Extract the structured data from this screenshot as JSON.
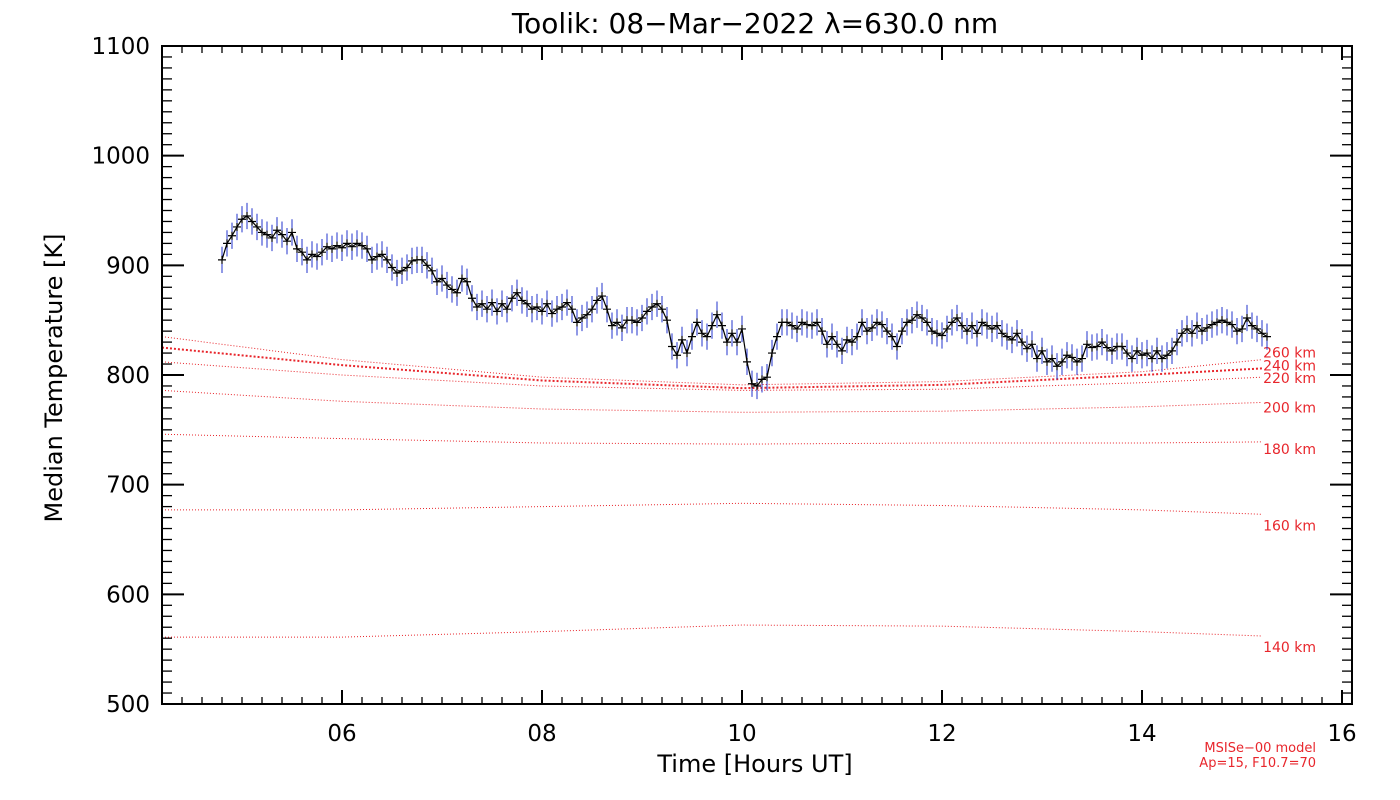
{
  "chart_data": {
    "type": "line",
    "title": "Toolik: 08−Mar−2022 λ=630.0 nm",
    "xlabel": "Time [Hours UT]",
    "ylabel": "Median Temperature [K]",
    "xlim": [
      4.2,
      16.1
    ],
    "ylim": [
      500,
      1100
    ],
    "x_ticks": [
      6,
      8,
      10,
      12,
      14,
      16
    ],
    "x_tick_labels": [
      "06",
      "08",
      "10",
      "12",
      "14",
      "16"
    ],
    "y_ticks": [
      500,
      600,
      700,
      800,
      900,
      1000,
      1100
    ],
    "y_tick_labels": [
      "500",
      "600",
      "700",
      "800",
      "900",
      "1000",
      "1100"
    ],
    "colors": {
      "measurement": "#000000",
      "error_bar": "#2233cc",
      "model": "#e8262c"
    },
    "series": [
      {
        "style": "line-with-cross-markers-and-blue-error-bars",
        "points": [
          [
            4.8,
            905
          ],
          [
            4.85,
            920
          ],
          [
            4.9,
            927
          ],
          [
            4.95,
            935
          ],
          [
            5.0,
            942
          ],
          [
            5.05,
            945
          ],
          [
            5.1,
            940
          ],
          [
            5.15,
            935
          ],
          [
            5.2,
            930
          ],
          [
            5.25,
            928
          ],
          [
            5.3,
            925
          ],
          [
            5.35,
            932
          ],
          [
            5.4,
            928
          ],
          [
            5.45,
            922
          ],
          [
            5.5,
            930
          ],
          [
            5.55,
            915
          ],
          [
            5.6,
            912
          ],
          [
            5.65,
            905
          ],
          [
            5.7,
            910
          ],
          [
            5.75,
            908
          ],
          [
            5.8,
            912
          ],
          [
            5.85,
            917
          ],
          [
            5.9,
            915
          ],
          [
            5.95,
            918
          ],
          [
            6.0,
            916
          ],
          [
            6.05,
            920
          ],
          [
            6.1,
            917
          ],
          [
            6.15,
            920
          ],
          [
            6.2,
            918
          ],
          [
            6.25,
            915
          ],
          [
            6.3,
            905
          ],
          [
            6.35,
            908
          ],
          [
            6.4,
            910
          ],
          [
            6.45,
            905
          ],
          [
            6.5,
            898
          ],
          [
            6.55,
            893
          ],
          [
            6.6,
            895
          ],
          [
            6.65,
            898
          ],
          [
            6.7,
            904
          ],
          [
            6.75,
            905
          ],
          [
            6.8,
            905
          ],
          [
            6.85,
            900
          ],
          [
            6.9,
            895
          ],
          [
            6.95,
            885
          ],
          [
            7.0,
            888
          ],
          [
            7.05,
            882
          ],
          [
            7.1,
            878
          ],
          [
            7.15,
            875
          ],
          [
            7.2,
            888
          ],
          [
            7.25,
            885
          ],
          [
            7.3,
            870
          ],
          [
            7.35,
            862
          ],
          [
            7.4,
            865
          ],
          [
            7.45,
            860
          ],
          [
            7.5,
            866
          ],
          [
            7.55,
            858
          ],
          [
            7.6,
            865
          ],
          [
            7.65,
            860
          ],
          [
            7.7,
            870
          ],
          [
            7.75,
            875
          ],
          [
            7.8,
            868
          ],
          [
            7.85,
            865
          ],
          [
            7.9,
            860
          ],
          [
            7.95,
            862
          ],
          [
            8.0,
            858
          ],
          [
            8.05,
            865
          ],
          [
            8.1,
            856
          ],
          [
            8.15,
            860
          ],
          [
            8.2,
            862
          ],
          [
            8.25,
            866
          ],
          [
            8.3,
            860
          ],
          [
            8.35,
            848
          ],
          [
            8.4,
            852
          ],
          [
            8.45,
            855
          ],
          [
            8.5,
            860
          ],
          [
            8.55,
            868
          ],
          [
            8.6,
            872
          ],
          [
            8.65,
            860
          ],
          [
            8.7,
            845
          ],
          [
            8.75,
            848
          ],
          [
            8.8,
            843
          ],
          [
            8.85,
            850
          ],
          [
            8.9,
            850
          ],
          [
            8.95,
            848
          ],
          [
            9.0,
            852
          ],
          [
            9.05,
            858
          ],
          [
            9.1,
            862
          ],
          [
            9.15,
            865
          ],
          [
            9.2,
            860
          ],
          [
            9.25,
            850
          ],
          [
            9.3,
            826
          ],
          [
            9.35,
            818
          ],
          [
            9.4,
            832
          ],
          [
            9.45,
            820
          ],
          [
            9.5,
            835
          ],
          [
            9.55,
            848
          ],
          [
            9.6,
            838
          ],
          [
            9.65,
            835
          ],
          [
            9.7,
            845
          ],
          [
            9.75,
            855
          ],
          [
            9.8,
            845
          ],
          [
            9.85,
            830
          ],
          [
            9.9,
            838
          ],
          [
            9.95,
            830
          ],
          [
            10.0,
            842
          ],
          [
            10.05,
            812
          ],
          [
            10.1,
            792
          ],
          [
            10.15,
            790
          ],
          [
            10.2,
            796
          ],
          [
            10.25,
            798
          ],
          [
            10.3,
            820
          ],
          [
            10.35,
            835
          ],
          [
            10.4,
            848
          ],
          [
            10.45,
            848
          ],
          [
            10.5,
            845
          ],
          [
            10.55,
            842
          ],
          [
            10.6,
            848
          ],
          [
            10.65,
            846
          ],
          [
            10.7,
            845
          ],
          [
            10.75,
            848
          ],
          [
            10.8,
            840
          ],
          [
            10.85,
            828
          ],
          [
            10.9,
            835
          ],
          [
            10.95,
            828
          ],
          [
            11.0,
            822
          ],
          [
            11.05,
            832
          ],
          [
            11.1,
            830
          ],
          [
            11.15,
            835
          ],
          [
            11.2,
            848
          ],
          [
            11.25,
            840
          ],
          [
            11.3,
            843
          ],
          [
            11.35,
            848
          ],
          [
            11.4,
            846
          ],
          [
            11.45,
            840
          ],
          [
            11.5,
            835
          ],
          [
            11.55,
            826
          ],
          [
            11.6,
            840
          ],
          [
            11.65,
            848
          ],
          [
            11.7,
            850
          ],
          [
            11.75,
            855
          ],
          [
            11.8,
            852
          ],
          [
            11.85,
            848
          ],
          [
            11.9,
            840
          ],
          [
            11.95,
            838
          ],
          [
            12.0,
            836
          ],
          [
            12.05,
            842
          ],
          [
            12.1,
            848
          ],
          [
            12.15,
            852
          ],
          [
            12.2,
            845
          ],
          [
            12.25,
            840
          ],
          [
            12.3,
            845
          ],
          [
            12.35,
            838
          ],
          [
            12.4,
            848
          ],
          [
            12.45,
            845
          ],
          [
            12.5,
            842
          ],
          [
            12.55,
            845
          ],
          [
            12.6,
            838
          ],
          [
            12.65,
            835
          ],
          [
            12.7,
            832
          ],
          [
            12.75,
            838
          ],
          [
            12.8,
            830
          ],
          [
            12.85,
            824
          ],
          [
            12.9,
            828
          ],
          [
            12.95,
            815
          ],
          [
            13.0,
            822
          ],
          [
            13.05,
            812
          ],
          [
            13.1,
            815
          ],
          [
            13.15,
            808
          ],
          [
            13.2,
            812
          ],
          [
            13.25,
            818
          ],
          [
            13.3,
            816
          ],
          [
            13.35,
            812
          ],
          [
            13.4,
            815
          ],
          [
            13.45,
            828
          ],
          [
            13.5,
            825
          ],
          [
            13.55,
            826
          ],
          [
            13.6,
            830
          ],
          [
            13.65,
            825
          ],
          [
            13.7,
            822
          ],
          [
            13.75,
            826
          ],
          [
            13.8,
            826
          ],
          [
            13.85,
            820
          ],
          [
            13.9,
            815
          ],
          [
            13.95,
            822
          ],
          [
            14.0,
            818
          ],
          [
            14.05,
            820
          ],
          [
            14.1,
            815
          ],
          [
            14.15,
            822
          ],
          [
            14.2,
            815
          ],
          [
            14.25,
            818
          ],
          [
            14.3,
            822
          ],
          [
            14.35,
            830
          ],
          [
            14.4,
            838
          ],
          [
            14.45,
            842
          ],
          [
            14.5,
            838
          ],
          [
            14.55,
            845
          ],
          [
            14.6,
            840
          ],
          [
            14.65,
            843
          ],
          [
            14.7,
            846
          ],
          [
            14.75,
            848
          ],
          [
            14.8,
            850
          ],
          [
            14.85,
            848
          ],
          [
            14.9,
            846
          ],
          [
            14.95,
            840
          ],
          [
            15.0,
            842
          ],
          [
            15.05,
            852
          ],
          [
            15.1,
            845
          ],
          [
            15.15,
            842
          ],
          [
            15.2,
            838
          ],
          [
            15.25,
            835
          ]
        ],
        "error_bar_half_width": 12
      }
    ],
    "model_curves": [
      {
        "label": "260 km",
        "points": [
          [
            4.2,
            835
          ],
          [
            6,
            814
          ],
          [
            8,
            798
          ],
          [
            10,
            791
          ],
          [
            12,
            794
          ],
          [
            14,
            803
          ],
          [
            15.2,
            814
          ]
        ]
      },
      {
        "label": "240 km",
        "points": [
          [
            4.2,
            825
          ],
          [
            6,
            809
          ],
          [
            8,
            795
          ],
          [
            10,
            788
          ],
          [
            12,
            791
          ],
          [
            14,
            800
          ],
          [
            15.2,
            806
          ]
        ]
      },
      {
        "label": "220 km",
        "points": [
          [
            4.2,
            812
          ],
          [
            6,
            800
          ],
          [
            8,
            790
          ],
          [
            10,
            786
          ],
          [
            12,
            787
          ],
          [
            14,
            793
          ],
          [
            15.2,
            798
          ]
        ]
      },
      {
        "label": "200 km",
        "points": [
          [
            4.2,
            786
          ],
          [
            6,
            776
          ],
          [
            8,
            769
          ],
          [
            10,
            766
          ],
          [
            12,
            767
          ],
          [
            14,
            771
          ],
          [
            15.2,
            775
          ]
        ]
      },
      {
        "label": "180 km",
        "points": [
          [
            4.2,
            746
          ],
          [
            6,
            742
          ],
          [
            8,
            738
          ],
          [
            10,
            737
          ],
          [
            12,
            738
          ],
          [
            14,
            738
          ],
          [
            15.2,
            739
          ]
        ]
      },
      {
        "label": "160 km",
        "points": [
          [
            4.2,
            677
          ],
          [
            6,
            677
          ],
          [
            8,
            680
          ],
          [
            10,
            683
          ],
          [
            12,
            681
          ],
          [
            14,
            677
          ],
          [
            15.2,
            673
          ]
        ]
      },
      {
        "label": "140 km",
        "points": [
          [
            4.2,
            561
          ],
          [
            6,
            561
          ],
          [
            8,
            566
          ],
          [
            10,
            572
          ],
          [
            12,
            571
          ],
          [
            14,
            566
          ],
          [
            15.2,
            562
          ]
        ]
      }
    ],
    "model_note": [
      "MSISe−00 model",
      "Ap=15, F10.7=70"
    ]
  }
}
